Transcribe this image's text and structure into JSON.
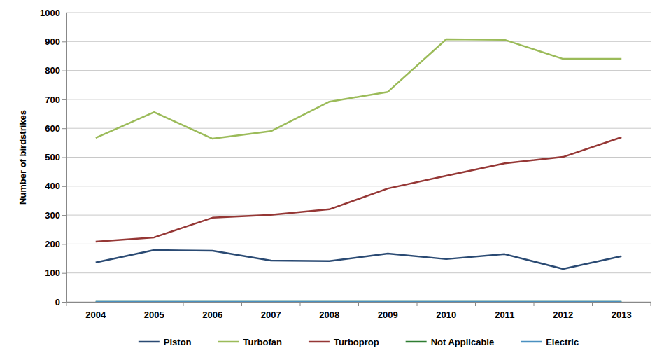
{
  "chart_data": {
    "type": "line",
    "y_label": "Number of birdstrikes",
    "categories": [
      "2004",
      "2005",
      "2006",
      "2007",
      "2008",
      "2009",
      "2010",
      "2011",
      "2012",
      "2013"
    ],
    "series": [
      {
        "name": "Piston",
        "color": "#2a4a73",
        "values": [
          136,
          179,
          177,
          143,
          141,
          167,
          148,
          165,
          114,
          158
        ]
      },
      {
        "name": "Turbofan",
        "color": "#9bbb59",
        "values": [
          567,
          656,
          564,
          590,
          692,
          726,
          908,
          906,
          840,
          840
        ]
      },
      {
        "name": "Turboprop",
        "color": "#953735",
        "values": [
          208,
          223,
          291,
          301,
          320,
          392,
          436,
          479,
          501,
          569
        ]
      },
      {
        "name": "Not Applicable",
        "color": "#2e7d32",
        "values": [
          0,
          0,
          0,
          0,
          0,
          0,
          0,
          0,
          0,
          0
        ]
      },
      {
        "name": "Electric",
        "color": "#4a90c0",
        "values": [
          0,
          0,
          0,
          0,
          0,
          0,
          0,
          0,
          0,
          0
        ]
      }
    ],
    "ylim": [
      0,
      1000
    ],
    "yticks": [
      0,
      100,
      200,
      300,
      400,
      500,
      600,
      700,
      800,
      900,
      1000
    ],
    "grid": true,
    "legend": "bottom"
  }
}
